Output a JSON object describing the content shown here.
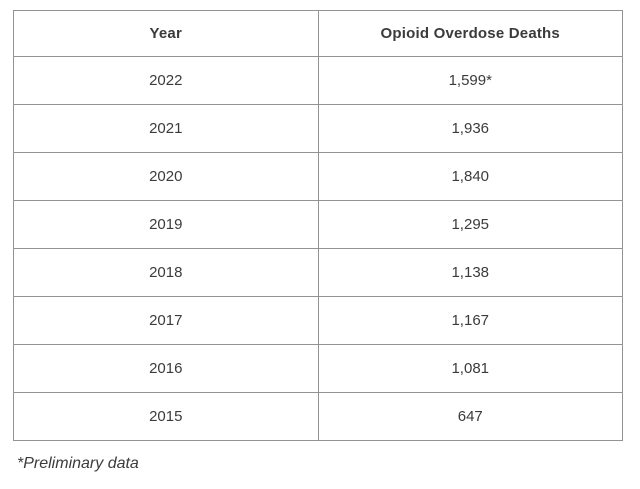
{
  "table": {
    "headers": [
      "Year",
      "Opioid Overdose Deaths"
    ],
    "rows": [
      [
        "2022",
        "1,599*"
      ],
      [
        "2021",
        "1,936"
      ],
      [
        "2020",
        "1,840"
      ],
      [
        "2019",
        "1,295"
      ],
      [
        "2018",
        "1,138"
      ],
      [
        "2017",
        "1,167"
      ],
      [
        "2016",
        "1,081"
      ],
      [
        "2015",
        "647"
      ]
    ]
  },
  "footnote": "*Preliminary data",
  "colors": {
    "border": "#939393",
    "text": "#3b3b3b",
    "background": "#ffffff"
  },
  "chart_data": {
    "type": "table",
    "title": "",
    "columns": [
      "Year",
      "Opioid Overdose Deaths"
    ],
    "categories": [
      "2022",
      "2021",
      "2020",
      "2019",
      "2018",
      "2017",
      "2016",
      "2015"
    ],
    "values": [
      1599,
      1936,
      1840,
      1295,
      1138,
      1167,
      1081,
      647
    ],
    "annotations": [
      "2022 value is preliminary (marked with *)"
    ],
    "footnote": "*Preliminary data"
  }
}
